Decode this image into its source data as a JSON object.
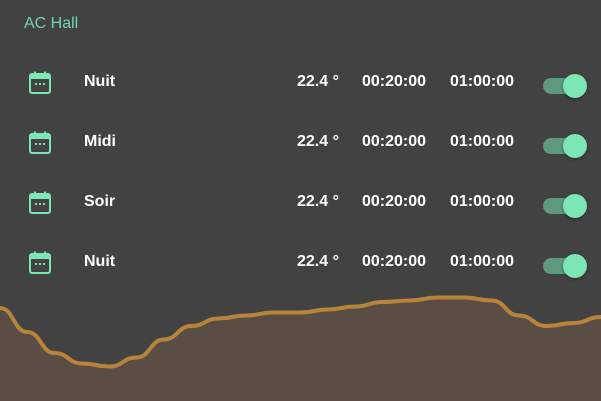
{
  "card": {
    "title": "AC Hall"
  },
  "accent_color": "#7ce6b4",
  "schedules": [
    {
      "icon": "calendar-icon",
      "name": "Nuit",
      "temperature": "22.4 °",
      "start": "00:20:00",
      "duration": "01:00:00",
      "enabled": true
    },
    {
      "icon": "calendar-icon",
      "name": "Midi",
      "temperature": "22.4 °",
      "start": "00:20:00",
      "duration": "01:00:00",
      "enabled": true
    },
    {
      "icon": "calendar-icon",
      "name": "Soir",
      "temperature": "22.4 °",
      "start": "00:20:00",
      "duration": "01:00:00",
      "enabled": true
    },
    {
      "icon": "calendar-icon",
      "name": "Nuit",
      "temperature": "22.4 °",
      "start": "00:20:00",
      "duration": "01:00:00",
      "enabled": true
    }
  ],
  "history_graph": {
    "type": "area",
    "line_color": "#b8833a",
    "fill_color": "#5a4e44",
    "values": [
      68,
      52,
      38,
      31,
      29,
      35,
      47,
      56,
      61,
      63,
      65,
      65,
      67,
      69,
      72,
      73,
      75,
      75,
      73,
      63,
      56,
      58,
      62
    ]
  }
}
